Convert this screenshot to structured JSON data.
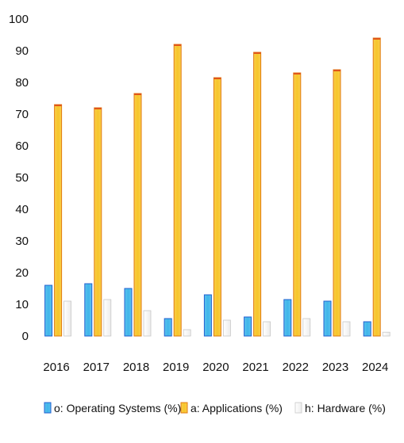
{
  "chart_data": {
    "type": "bar",
    "categories": [
      "2016",
      "2017",
      "2018",
      "2019",
      "2020",
      "2021",
      "2022",
      "2023",
      "2024"
    ],
    "series": [
      {
        "name": "o: Operating Systems (%)",
        "color": "#3fb6ea",
        "edge": "#1f5fd0",
        "values": [
          16,
          16.5,
          15,
          5.5,
          13,
          6,
          11.5,
          11,
          4.5
        ]
      },
      {
        "name": "a: Applications (%)",
        "color": "#f7c52a",
        "edge": "#e07a10",
        "values": [
          73,
          72,
          76.5,
          92,
          81.5,
          89.5,
          83,
          84,
          94
        ]
      },
      {
        "name": "h: Hardware (%)",
        "color": "#ffffff",
        "edge": "#c8c8c8",
        "values": [
          11,
          11.5,
          8,
          2,
          5,
          4.5,
          5.5,
          4.5,
          1.2
        ]
      }
    ],
    "ylim": [
      0,
      100
    ],
    "yticks": [
      "0",
      "10",
      "20",
      "30",
      "40",
      "50",
      "60",
      "70",
      "80",
      "90",
      "100"
    ],
    "grid": false,
    "legend_position": "bottom"
  }
}
